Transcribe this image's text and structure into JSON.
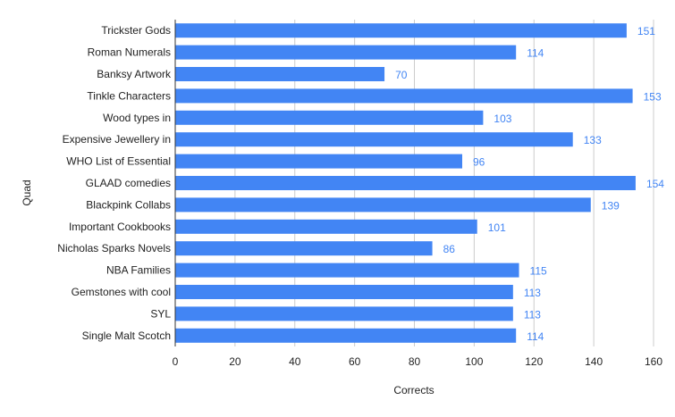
{
  "chart_data": {
    "type": "bar",
    "orientation": "horizontal",
    "categories": [
      "Trickster Gods",
      "Roman Numerals",
      "Banksy Artwork",
      "Tinkle Characters",
      "Wood types in",
      "Expensive Jewellery in",
      "WHO List of Essential",
      "GLAAD comedies",
      "Blackpink Collabs",
      "Important Cookbooks",
      "Nicholas Sparks Novels",
      "NBA Families",
      "Gemstones with cool",
      "SYL",
      "Single Malt Scotch"
    ],
    "values": [
      151,
      114,
      70,
      153,
      103,
      133,
      96,
      154,
      139,
      101,
      86,
      115,
      113,
      113,
      114
    ],
    "xlabel": "Corrects",
    "ylabel": "Quad",
    "xlim": [
      0,
      160
    ],
    "xticks": [
      0,
      20,
      40,
      60,
      80,
      100,
      120,
      140,
      160
    ],
    "grid": "vertical",
    "data_labels": true,
    "colors": {
      "bar": "#4285f4",
      "label": "#4285f4",
      "grid": "#cccccc",
      "axis": "#333333",
      "text": "#222222"
    }
  }
}
